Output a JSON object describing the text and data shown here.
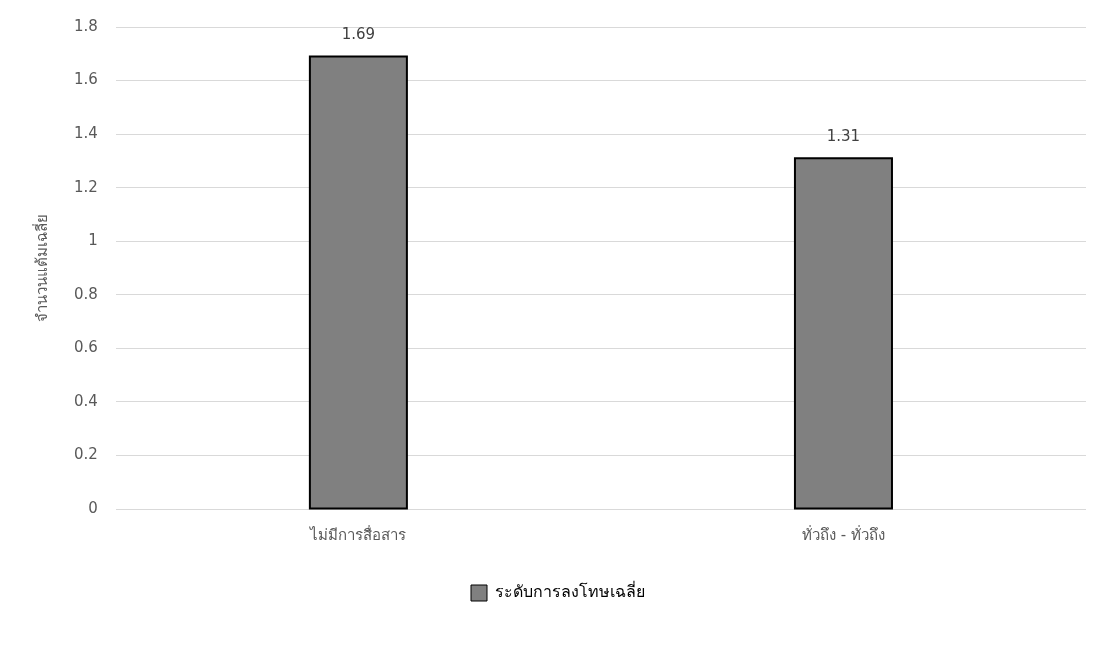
{
  "chart_data": {
    "type": "bar",
    "ylabel": "จำนวนแต้มเฉลี่ย",
    "categories": [
      "ไม่มีการสื่อสาร",
      "ทั่วถึง - ทั่วถึง"
    ],
    "series": [
      {
        "name": "ระดับการลงโทษเฉลี่ย",
        "color": "#808080",
        "values": [
          1.69,
          1.31
        ]
      }
    ],
    "ylim": [
      0,
      1.8
    ],
    "yticks": [
      0,
      0.2,
      0.4,
      0.6,
      0.8,
      1,
      1.2,
      1.4,
      1.6,
      1.8
    ],
    "grid": "y",
    "legend": "bottom",
    "data_labels": true
  }
}
